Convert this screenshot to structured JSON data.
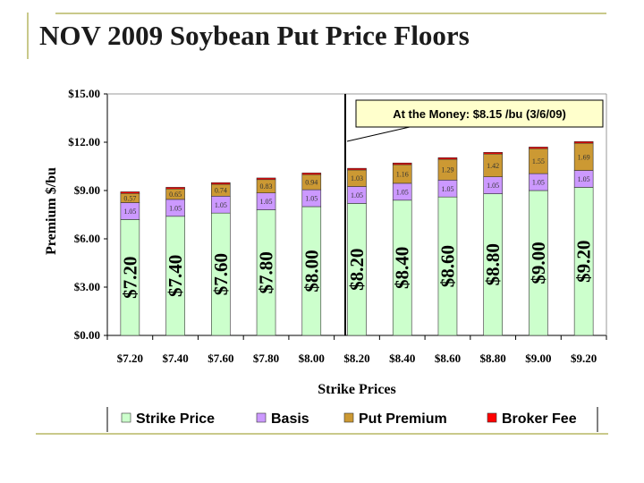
{
  "slide": {
    "title": "NOV 2009 Soybean Put Price Floors"
  },
  "colors": {
    "strike": "#ccffcc",
    "basis": "#cc99ff",
    "premium": "#cc9933",
    "broker": "#ff0000",
    "annotation_bg": "#ffffcc",
    "deco": "#c9c98a"
  },
  "chart_data": {
    "type": "bar",
    "stacked": true,
    "categories": [
      "$7.20",
      "$7.40",
      "$7.60",
      "$7.80",
      "$8.00",
      "$8.20",
      "$8.40",
      "$8.60",
      "$8.80",
      "$9.00",
      "$9.20"
    ],
    "series": [
      {
        "name": "Strike Price",
        "color": "#ccffcc",
        "values": [
          7.2,
          7.4,
          7.6,
          7.8,
          8.0,
          8.2,
          8.4,
          8.6,
          8.8,
          9.0,
          9.2
        ],
        "labels": [
          "$7.20",
          "$7.40",
          "$7.60",
          "$7.80",
          "$8.00",
          "$8.20",
          "$8.40",
          "$8.60",
          "$8.80",
          "$9.00",
          "$9.20"
        ]
      },
      {
        "name": "Basis",
        "color": "#cc99ff",
        "values": [
          1.05,
          1.05,
          1.05,
          1.05,
          1.05,
          1.05,
          1.05,
          1.05,
          1.05,
          1.05,
          1.05
        ],
        "labels": [
          "1.05",
          "1.05",
          "1.05",
          "1.05",
          "1.05",
          "1.05",
          "1.05",
          "1.05",
          "1.05",
          "1.05",
          "1.05"
        ]
      },
      {
        "name": "Put Premium",
        "color": "#cc9933",
        "values": [
          0.57,
          0.65,
          0.74,
          0.83,
          0.94,
          1.03,
          1.16,
          1.29,
          1.42,
          1.55,
          1.69
        ],
        "labels": [
          "0.57",
          "0.65",
          "0.74",
          "0.83",
          "0.94",
          "1.03",
          "1.16",
          "1.29",
          "1.42",
          "1.55",
          "1.69"
        ]
      },
      {
        "name": "Broker Fee",
        "color": "#ff0000",
        "values": [
          0.1,
          0.1,
          0.1,
          0.1,
          0.1,
          0.1,
          0.1,
          0.1,
          0.1,
          0.1,
          0.1
        ]
      }
    ],
    "ylim": [
      0,
      15
    ],
    "yticks": [
      0,
      3,
      6,
      9,
      12,
      15
    ],
    "ytick_labels": [
      "$0.00",
      "$3.00",
      "$6.00",
      "$9.00",
      "$12.00",
      "$15.00"
    ],
    "xlabel": "Strike Prices",
    "ylabel": "Premium $/bu",
    "grid": false,
    "legend_position": "bottom",
    "annotation": {
      "text": "At the Money: $8.15 /bu (3/6/09)",
      "x_value": 8.15
    }
  }
}
